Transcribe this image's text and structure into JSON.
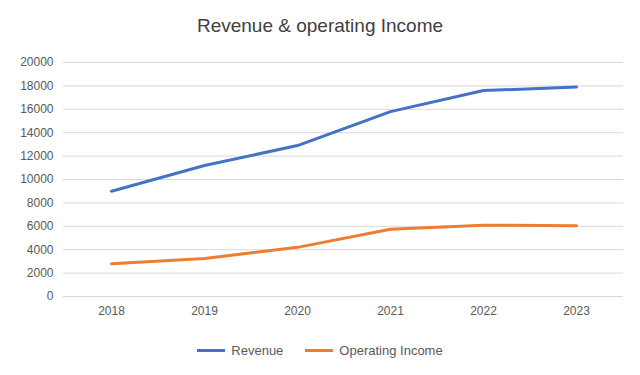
{
  "chart_data": {
    "type": "line",
    "title": "Revenue & operating Income",
    "categories": [
      "2018",
      "2019",
      "2020",
      "2021",
      "2022",
      "2023"
    ],
    "series": [
      {
        "name": "Revenue",
        "color": "#4472c4",
        "values": [
          9000,
          11200,
          12900,
          15800,
          17600,
          17900
        ]
      },
      {
        "name": "Operating Income",
        "color": "#ed7d31",
        "values": [
          2800,
          3250,
          4200,
          5750,
          6100,
          6050
        ]
      }
    ],
    "ylim": [
      0,
      20000
    ],
    "yticks": [
      0,
      2000,
      4000,
      6000,
      8000,
      10000,
      12000,
      14000,
      16000,
      18000,
      20000
    ],
    "grid": true,
    "legend": "bottom"
  }
}
